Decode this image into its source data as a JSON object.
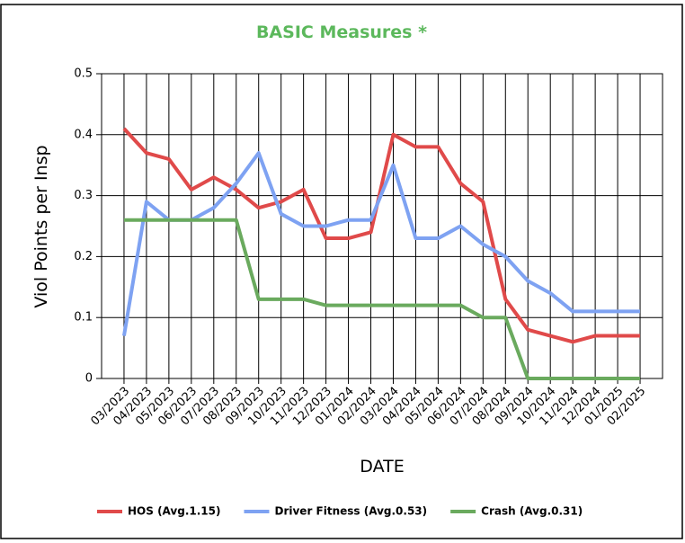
{
  "chart_data": {
    "type": "line",
    "title": "BASIC Measures *",
    "x_label": "DATE",
    "y_label": "Viol Points per Insp",
    "categories": [
      "03/2023",
      "04/2023",
      "05/2023",
      "06/2023",
      "07/2023",
      "08/2023",
      "09/2023",
      "10/2023",
      "11/2023",
      "12/2023",
      "01/2024",
      "02/2024",
      "03/2024",
      "04/2024",
      "05/2024",
      "06/2024",
      "07/2024",
      "08/2024",
      "09/2024",
      "10/2024",
      "11/2024",
      "12/2024",
      "01/2025",
      "02/2025"
    ],
    "series": [
      {
        "name": "HOS (Avg.1.15)",
        "color": "#e04a4a",
        "values": [
          0.41,
          0.37,
          0.36,
          0.31,
          0.33,
          0.31,
          0.28,
          0.29,
          0.31,
          0.23,
          0.23,
          0.24,
          0.4,
          0.38,
          0.38,
          0.32,
          0.29,
          0.13,
          0.08,
          0.07,
          0.06,
          0.07,
          0.07,
          0.07
        ]
      },
      {
        "name": "Driver Fitness (Avg.0.53)",
        "color": "#7ea2f2",
        "values": [
          0.07,
          0.29,
          0.26,
          0.26,
          0.28,
          0.32,
          0.37,
          0.27,
          0.25,
          0.25,
          0.26,
          0.26,
          0.35,
          0.23,
          0.23,
          0.25,
          0.22,
          0.2,
          0.16,
          0.14,
          0.11,
          0.11,
          0.11,
          0.11
        ]
      },
      {
        "name": "Crash (Avg.0.31)",
        "color": "#6aaa5e",
        "values": [
          0.26,
          0.26,
          0.26,
          0.26,
          0.26,
          0.26,
          0.13,
          0.13,
          0.13,
          0.12,
          0.12,
          0.12,
          0.12,
          0.12,
          0.12,
          0.12,
          0.1,
          0.1,
          0,
          0,
          0,
          0,
          0,
          0
        ]
      }
    ],
    "ylim": [
      0,
      0.5
    ],
    "yticks": [
      0,
      0.1,
      0.2,
      0.3,
      0.4,
      0.5
    ],
    "grid": true,
    "legend": "bottom"
  }
}
